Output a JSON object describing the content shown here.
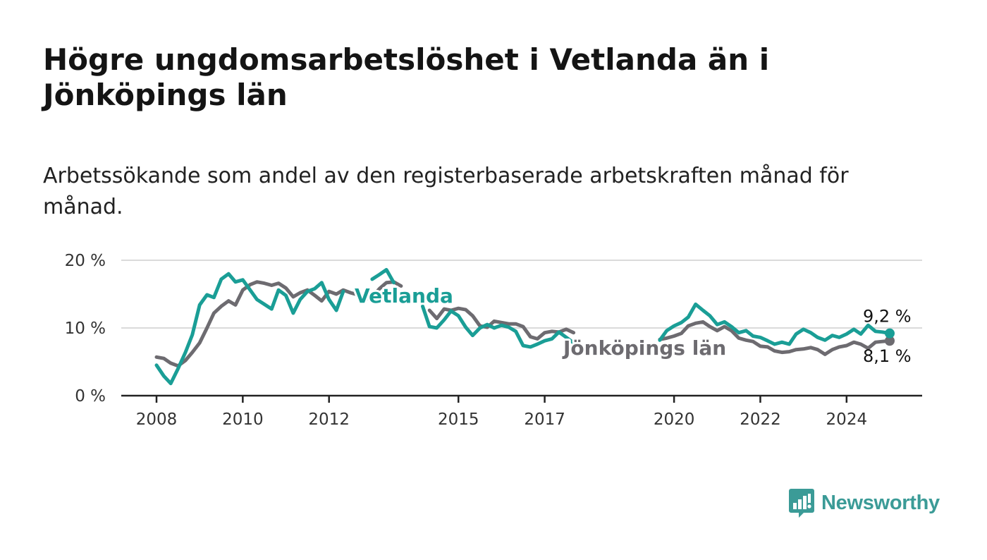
{
  "title": "Högre ungdomsarbetslöshet i Vetlanda än i Jönköpings län",
  "subtitle": "Arbetssökande som andel av den registerbaserade arbetskraften månad för månad.",
  "brand": {
    "name": "Newsworthy",
    "icon": "newsworthy-logo-icon",
    "color": "#3b9b97"
  },
  "chart_data": {
    "type": "line",
    "ylim": [
      0,
      20
    ],
    "xlim": [
      2008,
      2025
    ],
    "y_ticks": [
      0,
      10,
      20
    ],
    "y_tick_labels": [
      "0 %",
      "10 %",
      "20 %"
    ],
    "x_ticks": [
      2008,
      2010,
      2012,
      2015,
      2017,
      2020,
      2022,
      2024
    ],
    "x_tick_labels": [
      "2008",
      "2010",
      "2012",
      "2015",
      "2017",
      "2020",
      "2022",
      "2024"
    ],
    "grid": true,
    "series": [
      {
        "name": "Jönköpings län",
        "color": "#6d6b70",
        "end_label": "8,1 %",
        "points": [
          [
            2008.0,
            5.7
          ],
          [
            2008.17,
            5.5
          ],
          [
            2008.33,
            4.8
          ],
          [
            2008.5,
            4.4
          ],
          [
            2008.67,
            5.2
          ],
          [
            2008.83,
            6.4
          ],
          [
            2009.0,
            7.8
          ],
          [
            2009.17,
            10.0
          ],
          [
            2009.33,
            12.2
          ],
          [
            2009.5,
            13.2
          ],
          [
            2009.67,
            14.0
          ],
          [
            2009.83,
            13.4
          ],
          [
            2010.0,
            15.6
          ],
          [
            2010.17,
            16.4
          ],
          [
            2010.33,
            16.8
          ],
          [
            2010.5,
            16.6
          ],
          [
            2010.67,
            16.3
          ],
          [
            2010.83,
            16.6
          ],
          [
            2011.0,
            15.9
          ],
          [
            2011.17,
            14.6
          ],
          [
            2011.33,
            15.2
          ],
          [
            2011.5,
            15.6
          ],
          [
            2011.67,
            14.8
          ],
          [
            2011.83,
            14.0
          ],
          [
            2012.0,
            15.4
          ],
          [
            2012.17,
            15.0
          ],
          [
            2012.33,
            15.6
          ],
          [
            2012.5,
            15.2
          ],
          [
            2012.67,
            14.9
          ],
          [
            2012.83,
            14.2
          ],
          [
            2013.0,
            14.6
          ],
          [
            2013.17,
            15.8
          ],
          [
            2013.33,
            16.7
          ],
          [
            2013.5,
            16.8
          ],
          [
            2013.67,
            16.2
          ],
          null,
          [
            2014.33,
            12.6
          ],
          [
            2014.5,
            11.4
          ],
          [
            2014.67,
            12.8
          ],
          [
            2014.83,
            12.6
          ],
          [
            2015.0,
            12.9
          ],
          [
            2015.17,
            12.7
          ],
          [
            2015.33,
            11.8
          ],
          [
            2015.5,
            10.3
          ],
          [
            2015.67,
            10.1
          ],
          [
            2015.83,
            11.0
          ],
          [
            2016.0,
            10.8
          ],
          [
            2016.17,
            10.6
          ],
          [
            2016.33,
            10.6
          ],
          [
            2016.5,
            10.2
          ],
          [
            2016.67,
            8.7
          ],
          [
            2016.83,
            8.4
          ],
          [
            2017.0,
            9.3
          ],
          [
            2017.17,
            9.5
          ],
          [
            2017.33,
            9.4
          ],
          [
            2017.5,
            9.8
          ],
          [
            2017.67,
            9.3
          ],
          null,
          [
            2019.67,
            8.3
          ],
          [
            2019.83,
            8.5
          ],
          [
            2020.0,
            8.8
          ],
          [
            2020.17,
            9.2
          ],
          [
            2020.33,
            10.3
          ],
          [
            2020.5,
            10.7
          ],
          [
            2020.67,
            10.9
          ],
          [
            2020.83,
            10.2
          ],
          [
            2021.0,
            9.6
          ],
          [
            2021.17,
            10.2
          ],
          [
            2021.33,
            9.6
          ],
          [
            2021.5,
            8.5
          ],
          [
            2021.67,
            8.2
          ],
          [
            2021.83,
            8.0
          ],
          [
            2022.0,
            7.3
          ],
          [
            2022.17,
            7.2
          ],
          [
            2022.33,
            6.6
          ],
          [
            2022.5,
            6.4
          ],
          [
            2022.67,
            6.5
          ],
          [
            2022.83,
            6.8
          ],
          [
            2023.0,
            6.9
          ],
          [
            2023.17,
            7.1
          ],
          [
            2023.33,
            6.8
          ],
          [
            2023.5,
            6.1
          ],
          [
            2023.67,
            6.8
          ],
          [
            2023.83,
            7.2
          ],
          [
            2024.0,
            7.4
          ],
          [
            2024.17,
            7.9
          ],
          [
            2024.33,
            7.6
          ],
          [
            2024.5,
            7.0
          ],
          [
            2024.67,
            7.9
          ],
          [
            2024.83,
            8.0
          ],
          [
            2025.0,
            8.1
          ]
        ]
      },
      {
        "name": "Vetlanda",
        "color": "#1a9e96",
        "end_label": "9,2 %",
        "points": [
          [
            2008.0,
            4.5
          ],
          [
            2008.17,
            2.9
          ],
          [
            2008.33,
            1.8
          ],
          [
            2008.5,
            4.0
          ],
          [
            2008.67,
            6.4
          ],
          [
            2008.83,
            9.0
          ],
          [
            2009.0,
            13.4
          ],
          [
            2009.17,
            14.9
          ],
          [
            2009.33,
            14.5
          ],
          [
            2009.5,
            17.2
          ],
          [
            2009.67,
            18.0
          ],
          [
            2009.83,
            16.8
          ],
          [
            2010.0,
            17.1
          ],
          [
            2010.17,
            15.6
          ],
          [
            2010.33,
            14.2
          ],
          [
            2010.5,
            13.5
          ],
          [
            2010.67,
            12.8
          ],
          [
            2010.83,
            15.6
          ],
          [
            2011.0,
            14.8
          ],
          [
            2011.17,
            12.2
          ],
          [
            2011.33,
            14.2
          ],
          [
            2011.5,
            15.4
          ],
          [
            2011.67,
            15.8
          ],
          [
            2011.83,
            16.7
          ],
          [
            2012.0,
            14.2
          ],
          [
            2012.17,
            12.6
          ],
          [
            2012.33,
            15.4
          ],
          null,
          [
            2013.0,
            17.2
          ],
          [
            2013.17,
            17.9
          ],
          [
            2013.33,
            18.6
          ],
          [
            2013.5,
            16.7
          ],
          null,
          [
            2014.17,
            13.2
          ],
          [
            2014.33,
            10.2
          ],
          [
            2014.5,
            10.0
          ],
          [
            2014.67,
            11.2
          ],
          [
            2014.83,
            12.5
          ],
          [
            2015.0,
            11.8
          ],
          [
            2015.17,
            10.1
          ],
          [
            2015.33,
            8.9
          ],
          [
            2015.5,
            10.0
          ],
          [
            2015.67,
            10.5
          ],
          [
            2015.83,
            10.0
          ],
          [
            2016.0,
            10.4
          ],
          [
            2016.17,
            10.1
          ],
          [
            2016.33,
            9.5
          ],
          [
            2016.5,
            7.4
          ],
          [
            2016.67,
            7.2
          ],
          [
            2016.83,
            7.6
          ],
          [
            2017.0,
            8.1
          ],
          [
            2017.17,
            8.4
          ],
          [
            2017.33,
            9.4
          ],
          [
            2017.5,
            8.6
          ],
          [
            2017.67,
            7.8
          ],
          null,
          [
            2019.67,
            8.2
          ],
          [
            2019.83,
            9.6
          ],
          [
            2020.0,
            10.3
          ],
          [
            2020.17,
            10.8
          ],
          [
            2020.33,
            11.6
          ],
          [
            2020.5,
            13.5
          ],
          [
            2020.67,
            12.6
          ],
          [
            2020.83,
            11.8
          ],
          [
            2021.0,
            10.5
          ],
          [
            2021.17,
            10.9
          ],
          [
            2021.33,
            10.2
          ],
          [
            2021.5,
            9.3
          ],
          [
            2021.67,
            9.6
          ],
          [
            2021.83,
            8.8
          ],
          [
            2022.0,
            8.6
          ],
          [
            2022.17,
            8.1
          ],
          [
            2022.33,
            7.6
          ],
          [
            2022.5,
            7.9
          ],
          [
            2022.67,
            7.6
          ],
          [
            2022.83,
            9.1
          ],
          [
            2023.0,
            9.8
          ],
          [
            2023.17,
            9.3
          ],
          [
            2023.33,
            8.6
          ],
          [
            2023.5,
            8.2
          ],
          [
            2023.67,
            8.9
          ],
          [
            2023.83,
            8.6
          ],
          [
            2024.0,
            9.1
          ],
          [
            2024.17,
            9.8
          ],
          [
            2024.33,
            9.1
          ],
          [
            2024.5,
            10.4
          ],
          [
            2024.67,
            9.5
          ],
          [
            2024.83,
            9.4
          ],
          [
            2025.0,
            9.2
          ]
        ]
      }
    ]
  }
}
